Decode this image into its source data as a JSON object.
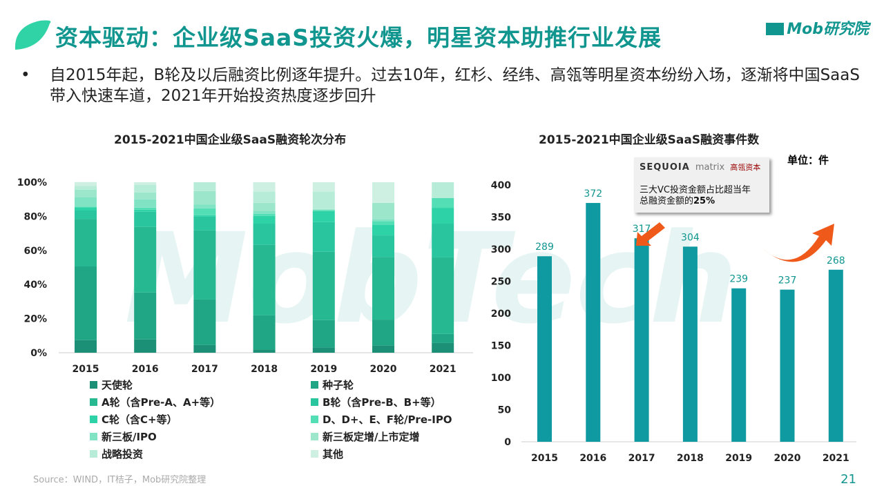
{
  "header": {
    "title": "资本驱动：企业级SaaS投资火爆，明星资本助推行业发展",
    "logo": "Mob研究院"
  },
  "bullet": "自2015年起，B轮及以后融资比例逐年提升。过去10年，红杉、经纬、高瓴等明星资本纷纷入场，逐渐将中国SaaS带入快速车道，2021年开始投资热度逐步回升",
  "watermark": "MobTech",
  "source": "Source：WIND，IT桔子，Mob研究院整理",
  "page_number": "21",
  "callout": {
    "logos": [
      "SEQUOIA",
      "matrix",
      "经纬中国",
      "高瓴资本",
      "Hillhouse Capital"
    ],
    "line1": "三大VC投资金额占比超当年",
    "line2": "总融资金额的",
    "highlight": "25%"
  },
  "chart_data": [
    {
      "type": "bar",
      "stacked": true,
      "title": "2015-2021中国企业级SaaS融资轮次分布",
      "categories": [
        "2015",
        "2016",
        "2017",
        "2018",
        "2019",
        "2020",
        "2021"
      ],
      "yticks": [
        "0%",
        "20%",
        "40%",
        "60%",
        "80%",
        "100%"
      ],
      "ylim": [
        0,
        100
      ],
      "series": [
        {
          "name": "天使轮",
          "color": "#1b9076",
          "values": [
            7.4,
            7.8,
            4.5,
            1.8,
            3.0,
            4.2,
            5.7
          ]
        },
        {
          "name": "种子轮",
          "color": "#20a585",
          "values": [
            43.2,
            27.5,
            26.7,
            20.1,
            16.1,
            15.2,
            5.3
          ]
        },
        {
          "name": "A轮（含Pre-A、A+等）",
          "color": "#25b891",
          "values": [
            27.9,
            38.5,
            40.6,
            41.4,
            40.1,
            36.8,
            44.9
          ]
        },
        {
          "name": "B轮（含Pre-B、B+等）",
          "color": "#29c59f",
          "values": [
            4.9,
            8.9,
            8.1,
            12.4,
            17.4,
            12.6,
            19.8
          ]
        },
        {
          "name": "C轮（含C+等）",
          "color": "#2dd3a6",
          "values": [
            1.8,
            1.2,
            0.8,
            4.5,
            6.5,
            6.1,
            9.3
          ]
        },
        {
          "name": "D、D+、E、F轮/Pre-IPO",
          "color": "#54deb5",
          "values": [
            0.5,
            1.2,
            4.0,
            1.2,
            0.5,
            2.3,
            5.7
          ]
        },
        {
          "name": "新三板/IPO",
          "color": "#80e3c4",
          "values": [
            5.4,
            4.9,
            2.3,
            1.6,
            0.3,
            1.1,
            0
          ]
        },
        {
          "name": "新三板定增/上市定增",
          "color": "#9ce6cc",
          "values": [
            4.5,
            4.0,
            7.8,
            4.9,
            0.4,
            9.6,
            0
          ]
        },
        {
          "name": "战略投资",
          "color": "#b6ecd8",
          "values": [
            2.2,
            4.5,
            5.2,
            6.6,
            10.2,
            0,
            9.3
          ]
        },
        {
          "name": "其他",
          "color": "#cdf0e2",
          "values": [
            2.3,
            1.5,
            0,
            5.5,
            5.5,
            12.1,
            0
          ]
        }
      ]
    },
    {
      "type": "bar",
      "title": "2015-2021中国企业级SaaS融资事件数",
      "unit": "单位：件",
      "categories": [
        "2015",
        "2016",
        "2017",
        "2018",
        "2019",
        "2020",
        "2021"
      ],
      "values": [
        289,
        372,
        317,
        304,
        239,
        237,
        268
      ],
      "ylim": [
        0,
        400
      ],
      "yticks": [
        "0",
        "50",
        "100",
        "150",
        "200",
        "250",
        "300",
        "350",
        "400"
      ],
      "color": "#0e9aa0",
      "label_color": "#10968f"
    }
  ]
}
